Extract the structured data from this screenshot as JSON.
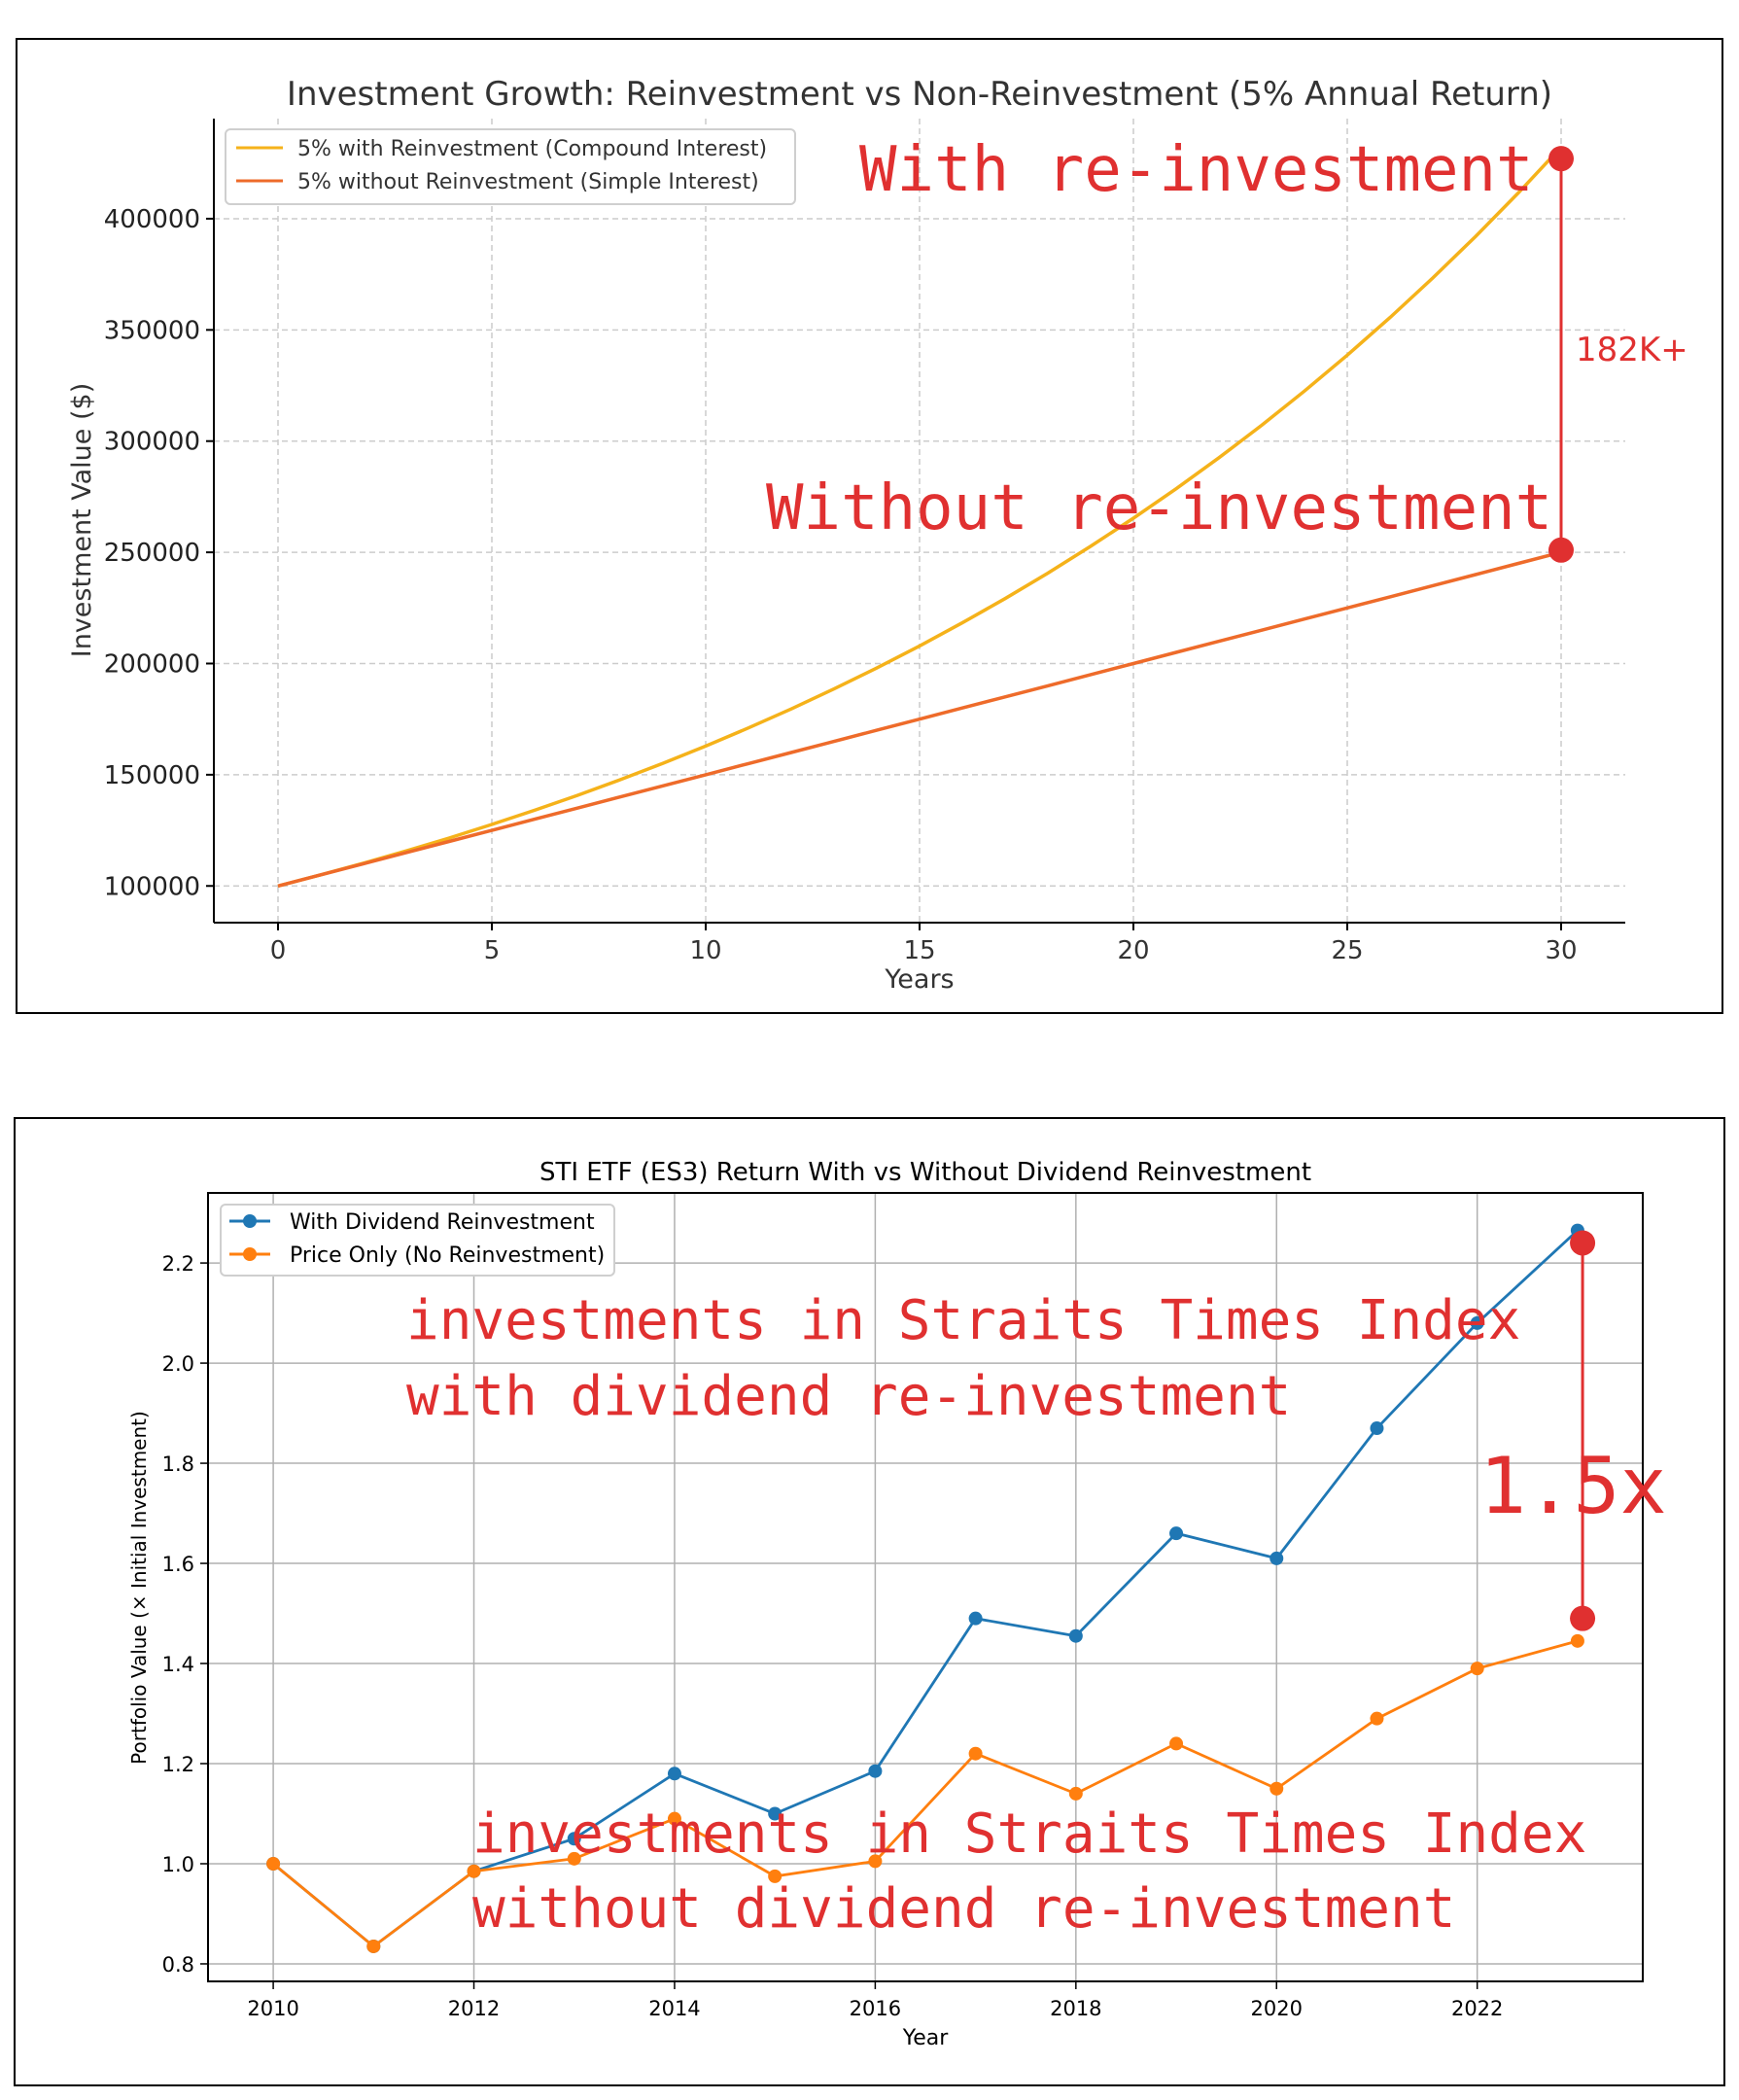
{
  "chart_data": [
    {
      "type": "line",
      "title": "Investment Growth: Reinvestment vs Non-Reinvestment (5% Annual Return)",
      "xlabel": "Years",
      "ylabel": "Investment Value ($)",
      "xlim": [
        -1.5,
        31.5
      ],
      "ylim": [
        83500,
        445000
      ],
      "x_ticks": [
        0,
        5,
        10,
        15,
        20,
        25,
        30
      ],
      "y_ticks": [
        100000,
        150000,
        200000,
        250000,
        300000,
        350000,
        400000
      ],
      "grid": true,
      "legend_position": "top-left",
      "x": [
        0,
        1,
        2,
        3,
        4,
        5,
        6,
        7,
        8,
        9,
        10,
        11,
        12,
        13,
        14,
        15,
        16,
        17,
        18,
        19,
        20,
        21,
        22,
        23,
        24,
        25,
        26,
        27,
        28,
        29,
        30
      ],
      "series": [
        {
          "name": "5% with Reinvestment (Compound Interest)",
          "color": "#f5b21a",
          "values": [
            100000,
            105000,
            110250,
            115763,
            121551,
            127628,
            134010,
            140710,
            147746,
            155133,
            162889,
            171034,
            179586,
            188565,
            197993,
            207893,
            218287,
            229202,
            240662,
            252695,
            265330,
            278596,
            292526,
            307152,
            322510,
            338635,
            355567,
            373346,
            392013,
            411614,
            432194
          ]
        },
        {
          "name": "5% without Reinvestment (Simple Interest)",
          "color": "#ee6b2a",
          "values": [
            100000,
            105000,
            110000,
            115000,
            120000,
            125000,
            130000,
            135000,
            140000,
            145000,
            150000,
            155000,
            160000,
            165000,
            170000,
            175000,
            180000,
            185000,
            190000,
            195000,
            200000,
            205000,
            210000,
            215000,
            220000,
            225000,
            230000,
            235000,
            240000,
            245000,
            250000
          ]
        }
      ],
      "annotations": {
        "with_label": "With re-investment",
        "without_label": "Without re-investment",
        "gap_label": "182K+",
        "color": "#e03030",
        "marker_x": 30,
        "marker_top": 427000,
        "marker_bottom": 251000
      }
    },
    {
      "type": "line",
      "title": "STI ETF (ES3) Return With vs Without Dividend Reinvestment",
      "xlabel": "Year",
      "ylabel": "Portfolio Value (× Initial Investment)",
      "xlim": [
        2009.35,
        2023.65
      ],
      "ylim": [
        0.765,
        2.34
      ],
      "x_ticks": [
        2010,
        2012,
        2014,
        2016,
        2018,
        2020,
        2022
      ],
      "y_ticks": [
        0.8,
        1.0,
        1.2,
        1.4,
        1.6,
        1.8,
        2.0,
        2.2
      ],
      "y_tick_labels": [
        "0.8",
        "1.0",
        "1.2",
        "1.4",
        "1.6",
        "1.8",
        "2.0",
        "2.2"
      ],
      "grid": true,
      "legend_position": "top-left",
      "x": [
        2010,
        2011,
        2012,
        2013,
        2014,
        2015,
        2016,
        2017,
        2018,
        2019,
        2020,
        2021,
        2022,
        2023
      ],
      "series": [
        {
          "name": "With Dividend Reinvestment",
          "color": "#1f77b4",
          "values": [
            1.0,
            0.835,
            0.985,
            1.05,
            1.18,
            1.1,
            1.185,
            1.49,
            1.455,
            1.66,
            1.61,
            1.87,
            2.08,
            2.265
          ]
        },
        {
          "name": "Price Only (No Reinvestment)",
          "color": "#ff7f0e",
          "values": [
            1.0,
            0.835,
            0.985,
            1.01,
            1.09,
            0.975,
            1.005,
            1.22,
            1.14,
            1.24,
            1.15,
            1.29,
            1.39,
            1.445
          ]
        }
      ],
      "annotations": {
        "with_label_line1": "investments in Straits Times Index",
        "with_label_line2": "with dividend re-investment",
        "without_label_line1": "investments in Straits Times Index",
        "without_label_line2": "without dividend re-investment",
        "gap_label": "1.5x",
        "color": "#e03030",
        "marker_x": 2023.05,
        "marker_top": 2.24,
        "marker_bottom": 1.49
      }
    }
  ]
}
